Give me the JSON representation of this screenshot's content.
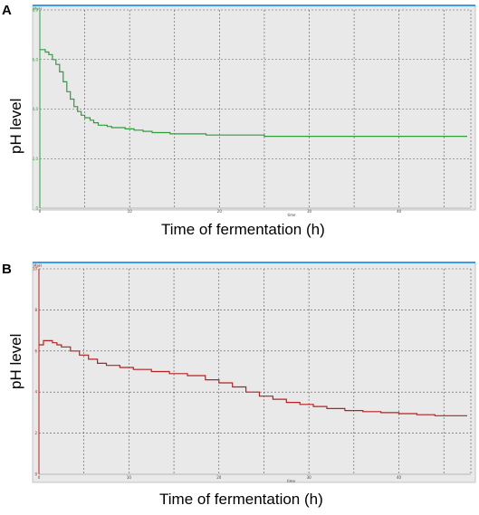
{
  "panels": [
    {
      "letter": "A",
      "ylabel": "pH level",
      "xlabel": "Time of fermentation (h)",
      "chart_data": {
        "type": "line",
        "title": "",
        "unit_label": "MpH",
        "x_axis_title": "time",
        "xlim": [
          0,
          48
        ],
        "ylim": [
          0,
          8
        ],
        "x_ticks": [
          0,
          10,
          20,
          30,
          40
        ],
        "x_tick_labels": [
          "0",
          "10",
          "20",
          "30",
          "40"
        ],
        "y_ticks": [
          0,
          2,
          4,
          6,
          8
        ],
        "y_tick_labels": [
          "0",
          "2,0",
          "4,0",
          "6,0",
          "8,0"
        ],
        "grid": true,
        "series": [
          {
            "color": "#2e9d3a",
            "x": [
              0,
              0.6,
              1.0,
              1.4,
              1.8,
              2.2,
              2.6,
              3.0,
              3.4,
              3.8,
              4.2,
              4.6,
              5.0,
              5.6,
              6.0,
              6.5,
              7.5,
              8.0,
              9.5,
              10.5,
              11.5,
              12.5,
              14.5,
              16.5,
              18.5,
              20.5,
              25.0,
              47.6
            ],
            "y": [
              6.4,
              6.3,
              6.2,
              6.0,
              5.8,
              5.5,
              5.1,
              4.7,
              4.4,
              4.1,
              3.9,
              3.75,
              3.65,
              3.55,
              3.45,
              3.35,
              3.3,
              3.25,
              3.2,
              3.15,
              3.1,
              3.05,
              3.0,
              3.0,
              2.95,
              2.95,
              2.9,
              2.9
            ]
          }
        ]
      }
    },
    {
      "letter": "B",
      "ylabel": "pH level",
      "xlabel": "Time of fermentation (h)",
      "chart_data": {
        "type": "line",
        "title": "",
        "unit_label": "MpH",
        "x_axis_title": "time",
        "xlim": [
          0,
          48
        ],
        "ylim": [
          0,
          10
        ],
        "x_ticks": [
          0,
          10,
          20,
          30,
          40
        ],
        "x_tick_labels": [
          "0",
          "10",
          "20",
          "30",
          "40"
        ],
        "y_ticks": [
          0,
          2,
          4,
          6,
          8,
          10
        ],
        "y_tick_labels": [
          "0",
          "2",
          "4",
          "6",
          "8",
          "10"
        ],
        "grid": true,
        "series": [
          {
            "color": "#b22222",
            "x": [
              0,
              0.5,
              1.0,
              1.5,
              2.0,
              2.5,
              3.5,
              4.5,
              5.5,
              6.5,
              7.5,
              9.0,
              10.5,
              12.5,
              14.5,
              16.5,
              18.5,
              20.0,
              21.5,
              23.0,
              24.5,
              26.0,
              27.5,
              29.0,
              30.5,
              32.0,
              34.0,
              36.0,
              38.0,
              40.0,
              42.0,
              44.0,
              47.6
            ],
            "y": [
              6.3,
              6.5,
              6.5,
              6.4,
              6.3,
              6.2,
              6.0,
              5.8,
              5.6,
              5.4,
              5.3,
              5.2,
              5.1,
              5.0,
              4.9,
              4.8,
              4.6,
              4.45,
              4.25,
              4.0,
              3.8,
              3.65,
              3.5,
              3.4,
              3.3,
              3.2,
              3.1,
              3.05,
              3.0,
              2.95,
              2.9,
              2.85,
              2.85
            ]
          }
        ]
      }
    }
  ]
}
